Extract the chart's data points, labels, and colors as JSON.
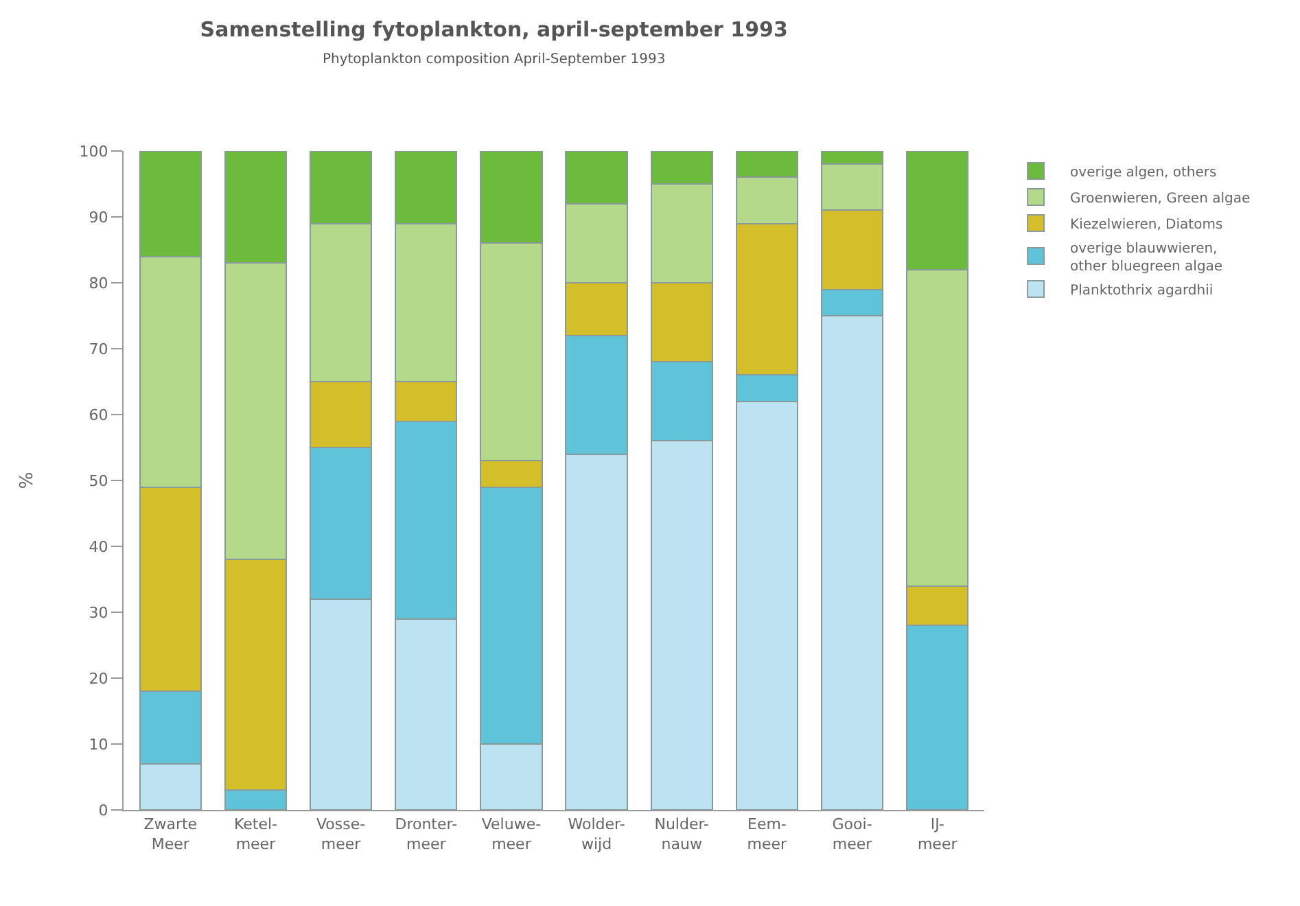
{
  "chart_data": {
    "type": "bar",
    "stacked": true,
    "title": "Samenstelling fytoplankton, april-september 1993",
    "subtitle": "Phytoplankton composition April-September 1993",
    "ylabel": "%",
    "categories": [
      "Zwarte\nMeer",
      "Ketel-\nmeer",
      "Vosse-\nmeer",
      "Dronter-\nmeer",
      "Veluwe-\nmeer",
      "Wolder-\nwijd",
      "Nulder-\nnauw",
      "Eem-\nmeer",
      "Gooi-\nmeer",
      "IJ-\nmeer"
    ],
    "series": [
      {
        "name": "Planktothrix agardhii",
        "color": "#bde3f2",
        "values": [
          7,
          0,
          32,
          29,
          10,
          54,
          56,
          62,
          75,
          0
        ]
      },
      {
        "name": "overige blauwwieren,\nother bluegreen algae",
        "color": "#5fc4d9",
        "values": [
          11,
          3,
          23,
          30,
          39,
          18,
          12,
          4,
          4,
          28
        ]
      },
      {
        "name": "Kiezelwieren, Diatoms",
        "color": "#d4bf2a",
        "values": [
          31,
          35,
          10,
          6,
          4,
          8,
          12,
          23,
          12,
          6
        ]
      },
      {
        "name": "Groenwieren, Green algae",
        "color": "#b5d98a",
        "values": [
          35,
          45,
          24,
          24,
          33,
          12,
          15,
          7,
          7,
          48
        ]
      },
      {
        "name": "overige algen, others",
        "color": "#6cbb3c",
        "values": [
          16,
          17,
          11,
          11,
          14,
          8,
          5,
          4,
          2,
          18
        ]
      }
    ],
    "ylim": [
      0,
      100
    ],
    "yticks": [
      0,
      10,
      20,
      30,
      40,
      50,
      60,
      70,
      80,
      90,
      100
    ],
    "grid": false,
    "legend": "top right"
  }
}
